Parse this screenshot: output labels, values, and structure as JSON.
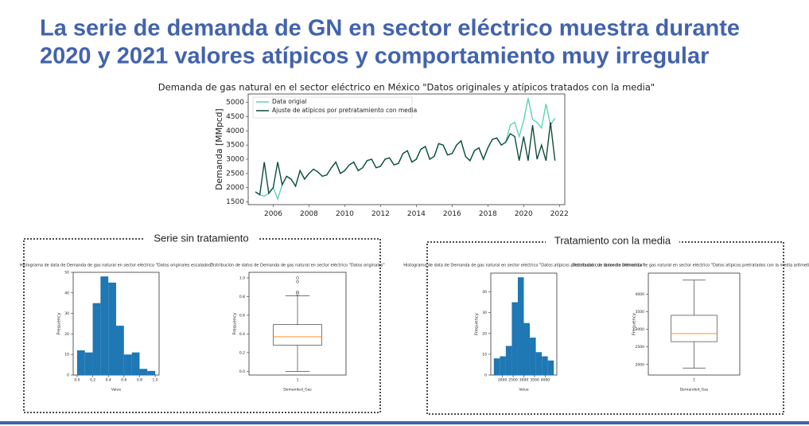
{
  "title": [
    "La serie de demanda de GN en sector eléctrico muestra durante",
    "2020 y 2021 valores atípicos y comportamiento muy irregular"
  ],
  "panels": [
    {
      "label": "Serie sin tratamiento"
    },
    {
      "label": "Tratamiento con la media"
    }
  ],
  "chart_data": [
    {
      "type": "line",
      "title": "Demanda de gas natural en el sector eléctrico en México \"Datos originales y atípicos tratados con la media\"",
      "y_label": "Demanda [MMpcd]",
      "legend": "upper left",
      "xlim": [
        2004.6,
        2022.3
      ],
      "xticks": [
        2006,
        2008,
        2010,
        2012,
        2014,
        2016,
        2018,
        2020,
        2022
      ],
      "ylim": [
        1400,
        5300
      ],
      "yticks": [
        1500,
        2000,
        2500,
        3000,
        3500,
        4000,
        4500,
        5000
      ],
      "x": [
        2005,
        2005.25,
        2005.5,
        2005.75,
        2006,
        2006.25,
        2006.5,
        2006.75,
        2007,
        2007.25,
        2007.5,
        2007.75,
        2008,
        2008.25,
        2008.5,
        2008.75,
        2009,
        2009.25,
        2009.5,
        2009.75,
        2010,
        2010.25,
        2010.5,
        2010.75,
        2011,
        2011.25,
        2011.5,
        2011.75,
        2012,
        2012.25,
        2012.5,
        2012.75,
        2013,
        2013.25,
        2013.5,
        2013.75,
        2014,
        2014.25,
        2014.5,
        2014.75,
        2015,
        2015.25,
        2015.5,
        2015.75,
        2016,
        2016.25,
        2016.5,
        2016.75,
        2017,
        2017.25,
        2017.5,
        2017.75,
        2018,
        2018.25,
        2018.5,
        2018.75,
        2019,
        2019.25,
        2019.5,
        2019.75,
        2020,
        2020.25,
        2020.5,
        2020.75,
        2021,
        2021.25,
        2021.5,
        2021.75
      ],
      "series": [
        {
          "name": "Data origial",
          "color": "#5fd3b0",
          "values": [
            1850,
            1750,
            1700,
            1800,
            2000,
            1600,
            2100,
            2400,
            2300,
            2050,
            2600,
            2300,
            2500,
            2650,
            2550,
            2400,
            2450,
            2700,
            2900,
            2500,
            2600,
            2800,
            2900,
            2600,
            2700,
            2950,
            3000,
            2700,
            2750,
            3000,
            3050,
            2800,
            2850,
            3200,
            3300,
            2900,
            3000,
            3350,
            3450,
            3000,
            3100,
            3550,
            3500,
            3150,
            3200,
            3500,
            3650,
            3100,
            2950,
            3300,
            3400,
            3000,
            3400,
            3700,
            3750,
            3500,
            3600,
            4200,
            4300,
            3800,
            4350,
            5150,
            4400,
            4300,
            4100,
            4950,
            4200,
            4450
          ]
        },
        {
          "name": "Ajuste de atípicos por pretratamiento con media",
          "color": "#0f4d3a",
          "values": [
            1850,
            1750,
            2900,
            1800,
            2000,
            2900,
            2100,
            2400,
            2300,
            2050,
            2600,
            2300,
            2500,
            2650,
            2550,
            2400,
            2450,
            2700,
            2900,
            2500,
            2600,
            2800,
            2900,
            2600,
            2700,
            2950,
            3000,
            2700,
            2750,
            3000,
            3050,
            2800,
            2850,
            3200,
            3300,
            2900,
            3000,
            3350,
            3450,
            3000,
            3100,
            3550,
            3500,
            3150,
            3200,
            3500,
            3650,
            3100,
            2950,
            3300,
            3400,
            3000,
            3400,
            3700,
            3750,
            3500,
            3600,
            3900,
            3800,
            2950,
            3800,
            2950,
            4200,
            3000,
            3500,
            2950,
            4300,
            2950
          ]
        }
      ]
    },
    {
      "type": "histogram",
      "title": "Histograma de data de Demanda de gas natural en sector eléctrico \"Datos originales escalados\"",
      "x_label": "Value",
      "y_label": "Frequency",
      "color": "#1f77b4",
      "bins": [
        0,
        0.1,
        0.2,
        0.3,
        0.4,
        0.5,
        0.6,
        0.7,
        0.8,
        0.9,
        1.0
      ],
      "values": [
        12,
        11,
        35,
        48,
        45,
        24,
        10,
        11,
        3,
        2
      ],
      "xlim": [
        -0.05,
        1.05
      ],
      "xticks": [
        {
          "value": 0,
          "label": "0.0"
        },
        0.2,
        0.4,
        0.6,
        0.8,
        {
          "value": 1,
          "label": "1.0"
        }
      ],
      "ylim": [
        0,
        50
      ],
      "yticks": [
        0,
        10,
        20,
        30,
        40,
        50
      ]
    },
    {
      "type": "box",
      "title": "Distribución de datos de Demanda de gas natural en sector eléctrico \"Datos originales\"",
      "x_label": "Demanded_Gas",
      "y_label": "Frequency",
      "ylim": [
        -0.04,
        1.06
      ],
      "yticks": [
        {
          "value": 0,
          "label": "0.0"
        },
        0.2,
        0.4,
        0.6,
        0.8,
        {
          "value": 1,
          "label": "1.0"
        }
      ],
      "boxes": [
        {
          "label": "1",
          "whislo": 0,
          "q1": 0.28,
          "med": 0.37,
          "q3": 0.5,
          "whishi": 0.81,
          "fliers": [
            0.83,
            0.85,
            0.96,
            1.0
          ]
        }
      ]
    },
    {
      "type": "histogram",
      "title": "Histograma de data de Demanda de gas natural en sector eléctrico \"Datos atípicos pretratados con la media aritmetica\"",
      "x_label": "Value",
      "y_label": "Frequency",
      "color": "#1f77b4",
      "bins": [
        1600,
        1880,
        2160,
        2440,
        2720,
        3000,
        3280,
        3560,
        3840,
        4120,
        4400
      ],
      "values": [
        8,
        9,
        14,
        35,
        47,
        25,
        18,
        11,
        9,
        7
      ],
      "xlim": [
        1460,
        4540
      ],
      "xticks": [
        2000,
        2500,
        3000,
        3500,
        4000
      ],
      "ylim": [
        0,
        49
      ],
      "yticks": [
        0,
        10,
        20,
        30,
        40
      ]
    },
    {
      "type": "box",
      "title": "Distribución de datos de Demanda de gas natural en sector eléctrico \"Datos atípicos pretratados con la media aritmetica\"",
      "x_label": "Demanded_Gas",
      "y_label": "Frequency",
      "ylim": [
        1700,
        4600
      ],
      "yticks": [
        2000,
        2500,
        3000,
        3500,
        4000
      ],
      "boxes": [
        {
          "label": "1",
          "whislo": 1900,
          "q1": 2650,
          "med": 2880,
          "q3": 3400,
          "whishi": 4400,
          "fliers": []
        }
      ]
    }
  ]
}
